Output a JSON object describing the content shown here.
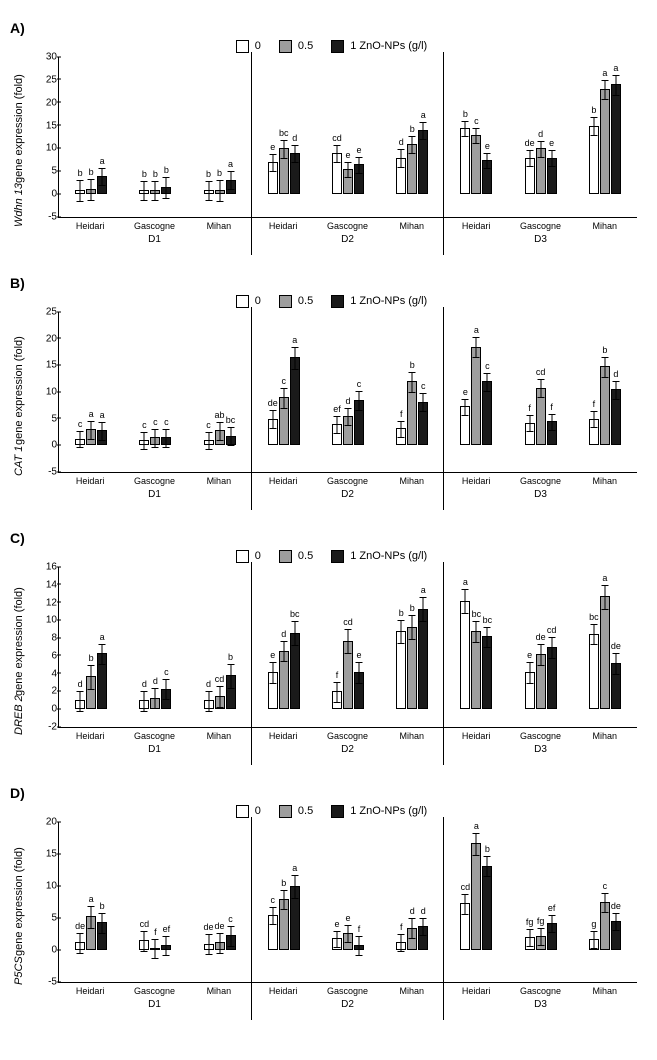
{
  "legend": {
    "items": [
      {
        "label": "0",
        "color": "#ffffff"
      },
      {
        "label": "0.5",
        "color": "#9e9e9e"
      },
      {
        "label": "1 ZnO-NPs (g/l)",
        "color": "#1a1a1a"
      }
    ]
  },
  "cultivars": [
    "Heidari",
    "Gascogne",
    "Mihan"
  ],
  "doses": [
    "D1",
    "D2",
    "D3"
  ],
  "chartHeightPx": 160,
  "panels": [
    {
      "id": "A",
      "ylabel_italic": "Wdhn 13",
      "ylabel_rest": " gene expression  (fold)",
      "ymin": -5,
      "ymax": 30,
      "ystep": 5,
      "groups": [
        {
          "bars": [
            {
              "v": 1.0,
              "e": 2.4,
              "l": "b"
            },
            {
              "v": 1.2,
              "e": 2.4,
              "l": "b"
            },
            {
              "v": 4.0,
              "e": 2.0,
              "l": "a"
            }
          ]
        },
        {
          "bars": [
            {
              "v": 1.0,
              "e": 2.2,
              "l": "b"
            },
            {
              "v": 1.0,
              "e": 2.2,
              "l": "b"
            },
            {
              "v": 1.5,
              "e": 2.4,
              "l": "b"
            }
          ]
        },
        {
          "bars": [
            {
              "v": 1.0,
              "e": 2.2,
              "l": "b"
            },
            {
              "v": 1.0,
              "e": 2.4,
              "l": "b"
            },
            {
              "v": 3.2,
              "e": 2.0,
              "l": "a"
            }
          ],
          "div": true
        },
        {
          "bars": [
            {
              "v": 7.0,
              "e": 2.0,
              "l": "e"
            },
            {
              "v": 10.0,
              "e": 2.0,
              "l": "bc"
            },
            {
              "v": 9.0,
              "e": 2.0,
              "l": "d"
            }
          ]
        },
        {
          "bars": [
            {
              "v": 9.0,
              "e": 2.0,
              "l": "cd"
            },
            {
              "v": 5.5,
              "e": 1.8,
              "l": "e"
            },
            {
              "v": 6.5,
              "e": 1.8,
              "l": "e"
            }
          ]
        },
        {
          "bars": [
            {
              "v": 8.0,
              "e": 2.0,
              "l": "d"
            },
            {
              "v": 11.0,
              "e": 2.0,
              "l": "b"
            },
            {
              "v": 14.0,
              "e": 2.0,
              "l": "a"
            }
          ],
          "div": true
        },
        {
          "bars": [
            {
              "v": 14.5,
              "e": 1.8,
              "l": "b"
            },
            {
              "v": 13.0,
              "e": 1.8,
              "l": "c"
            },
            {
              "v": 7.5,
              "e": 1.8,
              "l": "e"
            }
          ]
        },
        {
          "bars": [
            {
              "v": 8.0,
              "e": 1.8,
              "l": "de"
            },
            {
              "v": 10.0,
              "e": 1.8,
              "l": "d"
            },
            {
              "v": 8.0,
              "e": 1.8,
              "l": "e"
            }
          ]
        },
        {
          "bars": [
            {
              "v": 15.0,
              "e": 2.0,
              "l": "b"
            },
            {
              "v": 23.0,
              "e": 2.2,
              "l": "a"
            },
            {
              "v": 24.0,
              "e": 2.2,
              "l": "a"
            }
          ]
        }
      ]
    },
    {
      "id": "B",
      "ylabel_italic": "CAT 1",
      "ylabel_rest": " gene expression  (fold)",
      "ymin": -5,
      "ymax": 25,
      "ystep": 5,
      "groups": [
        {
          "bars": [
            {
              "v": 1.2,
              "e": 1.6,
              "l": "c"
            },
            {
              "v": 3.0,
              "e": 1.8,
              "l": "a"
            },
            {
              "v": 2.8,
              "e": 1.8,
              "l": "a"
            }
          ]
        },
        {
          "bars": [
            {
              "v": 1.0,
              "e": 1.6,
              "l": "c"
            },
            {
              "v": 1.5,
              "e": 1.8,
              "l": "c"
            },
            {
              "v": 1.5,
              "e": 1.8,
              "l": "c"
            }
          ]
        },
        {
          "bars": [
            {
              "v": 1.0,
              "e": 1.6,
              "l": "c"
            },
            {
              "v": 2.8,
              "e": 1.8,
              "l": "ab"
            },
            {
              "v": 1.8,
              "e": 1.8,
              "l": "bc"
            }
          ],
          "div": true
        },
        {
          "bars": [
            {
              "v": 5.0,
              "e": 1.8,
              "l": "de"
            },
            {
              "v": 9.0,
              "e": 2.0,
              "l": "c"
            },
            {
              "v": 16.5,
              "e": 2.2,
              "l": "a"
            }
          ]
        },
        {
          "bars": [
            {
              "v": 4.0,
              "e": 1.6,
              "l": "ef"
            },
            {
              "v": 5.5,
              "e": 1.6,
              "l": "d"
            },
            {
              "v": 8.5,
              "e": 1.8,
              "l": "c"
            }
          ]
        },
        {
          "bars": [
            {
              "v": 3.2,
              "e": 1.6,
              "l": "f"
            },
            {
              "v": 12.0,
              "e": 2.0,
              "l": "b"
            },
            {
              "v": 8.2,
              "e": 1.8,
              "l": "c"
            }
          ],
          "div": true
        },
        {
          "bars": [
            {
              "v": 7.3,
              "e": 1.6,
              "l": "e"
            },
            {
              "v": 18.5,
              "e": 2.0,
              "l": "a"
            },
            {
              "v": 12.0,
              "e": 1.8,
              "l": "c"
            }
          ]
        },
        {
          "bars": [
            {
              "v": 4.2,
              "e": 1.6,
              "l": "f"
            },
            {
              "v": 10.8,
              "e": 1.8,
              "l": "cd"
            },
            {
              "v": 4.5,
              "e": 1.6,
              "l": "f"
            }
          ]
        },
        {
          "bars": [
            {
              "v": 5.0,
              "e": 1.6,
              "l": "f"
            },
            {
              "v": 14.8,
              "e": 2.0,
              "l": "b"
            },
            {
              "v": 10.5,
              "e": 1.8,
              "l": "d"
            }
          ]
        }
      ]
    },
    {
      "id": "C",
      "ylabel_italic": "DREB 2",
      "ylabel_rest": " gene expression (fold)",
      "ymin": -2,
      "ymax": 16,
      "ystep": 2,
      "groups": [
        {
          "bars": [
            {
              "v": 1.0,
              "e": 1.2,
              "l": "d"
            },
            {
              "v": 3.7,
              "e": 1.4,
              "l": "b"
            },
            {
              "v": 6.3,
              "e": 1.2,
              "l": "a"
            }
          ]
        },
        {
          "bars": [
            {
              "v": 1.0,
              "e": 1.2,
              "l": "d"
            },
            {
              "v": 1.3,
              "e": 1.2,
              "l": "d"
            },
            {
              "v": 2.3,
              "e": 1.2,
              "l": "c"
            }
          ]
        },
        {
          "bars": [
            {
              "v": 1.0,
              "e": 1.2,
              "l": "d"
            },
            {
              "v": 1.5,
              "e": 1.2,
              "l": "cd"
            },
            {
              "v": 3.8,
              "e": 1.4,
              "l": "b"
            }
          ],
          "div": true
        },
        {
          "bars": [
            {
              "v": 4.2,
              "e": 1.2,
              "l": "e"
            },
            {
              "v": 6.6,
              "e": 1.2,
              "l": "d"
            },
            {
              "v": 8.6,
              "e": 1.4,
              "l": "bc"
            }
          ]
        },
        {
          "bars": [
            {
              "v": 2.0,
              "e": 1.2,
              "l": "f"
            },
            {
              "v": 7.7,
              "e": 1.4,
              "l": "cd"
            },
            {
              "v": 4.2,
              "e": 1.2,
              "l": "e"
            }
          ]
        },
        {
          "bars": [
            {
              "v": 8.8,
              "e": 1.4,
              "l": "b"
            },
            {
              "v": 9.3,
              "e": 1.4,
              "l": "b"
            },
            {
              "v": 11.3,
              "e": 1.4,
              "l": "a"
            }
          ],
          "div": true
        },
        {
          "bars": [
            {
              "v": 12.2,
              "e": 1.4,
              "l": "a"
            },
            {
              "v": 8.8,
              "e": 1.2,
              "l": "bc"
            },
            {
              "v": 8.2,
              "e": 1.2,
              "l": "bc"
            }
          ]
        },
        {
          "bars": [
            {
              "v": 4.2,
              "e": 1.2,
              "l": "e"
            },
            {
              "v": 6.2,
              "e": 1.2,
              "l": "de"
            },
            {
              "v": 7.0,
              "e": 1.2,
              "l": "cd"
            }
          ]
        },
        {
          "bars": [
            {
              "v": 8.5,
              "e": 1.2,
              "l": "bc"
            },
            {
              "v": 12.7,
              "e": 1.4,
              "l": "a"
            },
            {
              "v": 5.2,
              "e": 1.2,
              "l": "de"
            }
          ]
        }
      ]
    },
    {
      "id": "D",
      "ylabel_italic": "P5CS",
      "ylabel_rest": " gene expression  (fold)",
      "ymin": -5,
      "ymax": 20,
      "ystep": 5,
      "groups": [
        {
          "bars": [
            {
              "v": 1.2,
              "e": 1.6,
              "l": "de"
            },
            {
              "v": 5.3,
              "e": 1.8,
              "l": "a"
            },
            {
              "v": 4.3,
              "e": 1.6,
              "l": "b"
            }
          ]
        },
        {
          "bars": [
            {
              "v": 1.5,
              "e": 1.6,
              "l": "cd"
            },
            {
              "v": 0.3,
              "e": 1.6,
              "l": "f"
            },
            {
              "v": 0.8,
              "e": 1.6,
              "l": "ef"
            }
          ]
        },
        {
          "bars": [
            {
              "v": 1.0,
              "e": 1.6,
              "l": "de"
            },
            {
              "v": 1.2,
              "e": 1.6,
              "l": "de"
            },
            {
              "v": 2.3,
              "e": 1.6,
              "l": "c"
            }
          ],
          "div": true
        },
        {
          "bars": [
            {
              "v": 5.5,
              "e": 1.4,
              "l": "c"
            },
            {
              "v": 8.0,
              "e": 1.6,
              "l": "b"
            },
            {
              "v": 10.0,
              "e": 1.8,
              "l": "a"
            }
          ]
        },
        {
          "bars": [
            {
              "v": 1.8,
              "e": 1.4,
              "l": "e"
            },
            {
              "v": 2.7,
              "e": 1.4,
              "l": "e"
            },
            {
              "v": 0.8,
              "e": 1.6,
              "l": "f"
            }
          ]
        },
        {
          "bars": [
            {
              "v": 1.2,
              "e": 1.4,
              "l": "f"
            },
            {
              "v": 3.5,
              "e": 1.6,
              "l": "d"
            },
            {
              "v": 3.8,
              "e": 1.4,
              "l": "d"
            }
          ],
          "div": true
        },
        {
          "bars": [
            {
              "v": 7.3,
              "e": 1.6,
              "l": "cd"
            },
            {
              "v": 16.7,
              "e": 1.8,
              "l": "a"
            },
            {
              "v": 13.2,
              "e": 1.6,
              "l": "b"
            }
          ]
        },
        {
          "bars": [
            {
              "v": 2.0,
              "e": 1.4,
              "l": "fg"
            },
            {
              "v": 2.2,
              "e": 1.4,
              "l": "fg"
            },
            {
              "v": 4.2,
              "e": 1.4,
              "l": "ef"
            }
          ]
        },
        {
          "bars": [
            {
              "v": 1.7,
              "e": 1.4,
              "l": "g"
            },
            {
              "v": 7.5,
              "e": 1.6,
              "l": "c"
            },
            {
              "v": 4.5,
              "e": 1.4,
              "l": "de"
            }
          ]
        }
      ]
    }
  ]
}
